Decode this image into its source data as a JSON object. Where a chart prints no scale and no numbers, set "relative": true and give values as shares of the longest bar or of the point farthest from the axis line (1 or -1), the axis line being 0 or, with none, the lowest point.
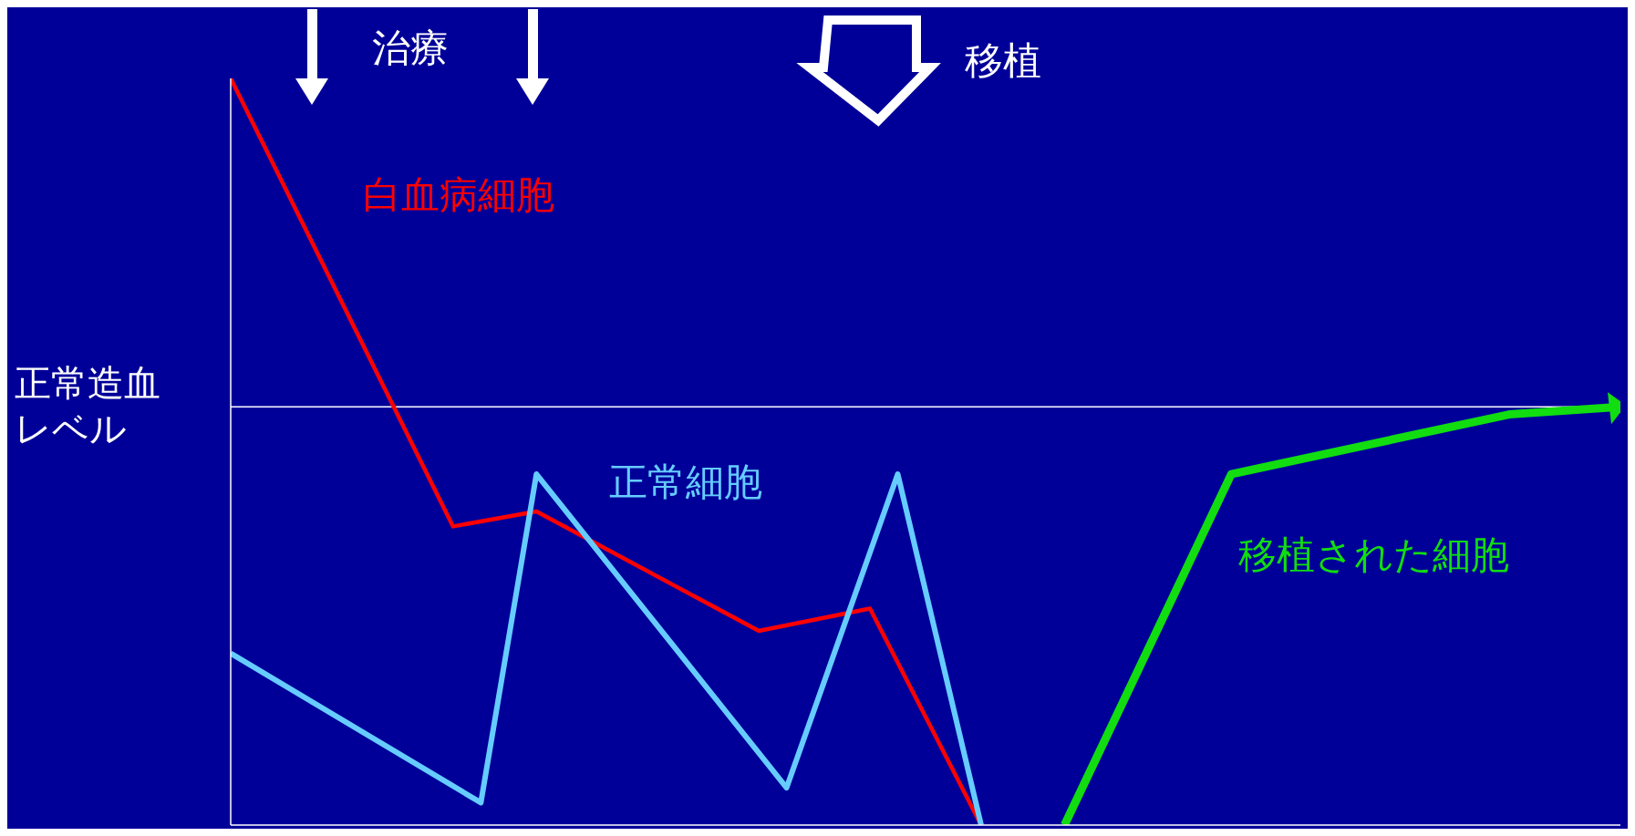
{
  "chart_data": {
    "type": "line",
    "relative": true,
    "marker": "none",
    "line_style": "solid",
    "categories": [
      null,
      null,
      null,
      null,
      null,
      null,
      null,
      null,
      null,
      null,
      null,
      null,
      null,
      null,
      null,
      null,
      null,
      null,
      null,
      null,
      null,
      null,
      null,
      null,
      null,
      null,
      null,
      null,
      null,
      null,
      null,
      null,
      null,
      null,
      null,
      null,
      null,
      null,
      null,
      null,
      null,
      null,
      null,
      null,
      null,
      null,
      null,
      null,
      null,
      null,
      null
    ],
    "series": [
      {
        "name": "白血病細胞",
        "color": "#ff0000",
        "values": [
          1,
          null,
          null,
          null,
          null,
          null,
          null,
          null,
          0.4,
          null,
          null,
          0.42,
          null,
          null,
          null,
          null,
          null,
          null,
          null,
          0.26,
          null,
          null,
          null,
          0.29,
          null,
          null,
          null,
          0,
          null,
          null,
          null,
          null,
          null,
          null,
          null,
          null,
          null,
          null,
          null,
          null,
          null,
          null,
          null,
          null,
          null,
          null,
          null,
          null,
          null,
          null,
          null
        ]
      },
      {
        "name": "正常細胞",
        "color": "#66ccff",
        "values": [
          0.23,
          null,
          null,
          null,
          null,
          null,
          null,
          null,
          null,
          0.03,
          null,
          0.47,
          null,
          null,
          null,
          null,
          null,
          null,
          null,
          null,
          0.05,
          null,
          null,
          null,
          0.47,
          null,
          null,
          0,
          null,
          null,
          null,
          null,
          null,
          null,
          null,
          null,
          null,
          null,
          null,
          null,
          null,
          null,
          null,
          null,
          null,
          null,
          null,
          null,
          null,
          null,
          null
        ]
      },
      {
        "name": "移植された細胞",
        "color": "#11dd11",
        "values": [
          null,
          null,
          null,
          null,
          null,
          null,
          null,
          null,
          null,
          null,
          null,
          null,
          null,
          null,
          null,
          null,
          null,
          null,
          null,
          null,
          null,
          null,
          null,
          null,
          null,
          null,
          null,
          null,
          null,
          null,
          0,
          null,
          null,
          null,
          null,
          null,
          0.47,
          null,
          null,
          null,
          null,
          null,
          null,
          null,
          null,
          null,
          0.55,
          null,
          null,
          null,
          0.56
        ]
      }
    ],
    "ref_lines": [
      {
        "axis": "y",
        "value": 0.56,
        "label": "正常造血レベル",
        "color": "#ffffff"
      }
    ],
    "annotations": [
      "治療",
      "移植"
    ]
  }
}
